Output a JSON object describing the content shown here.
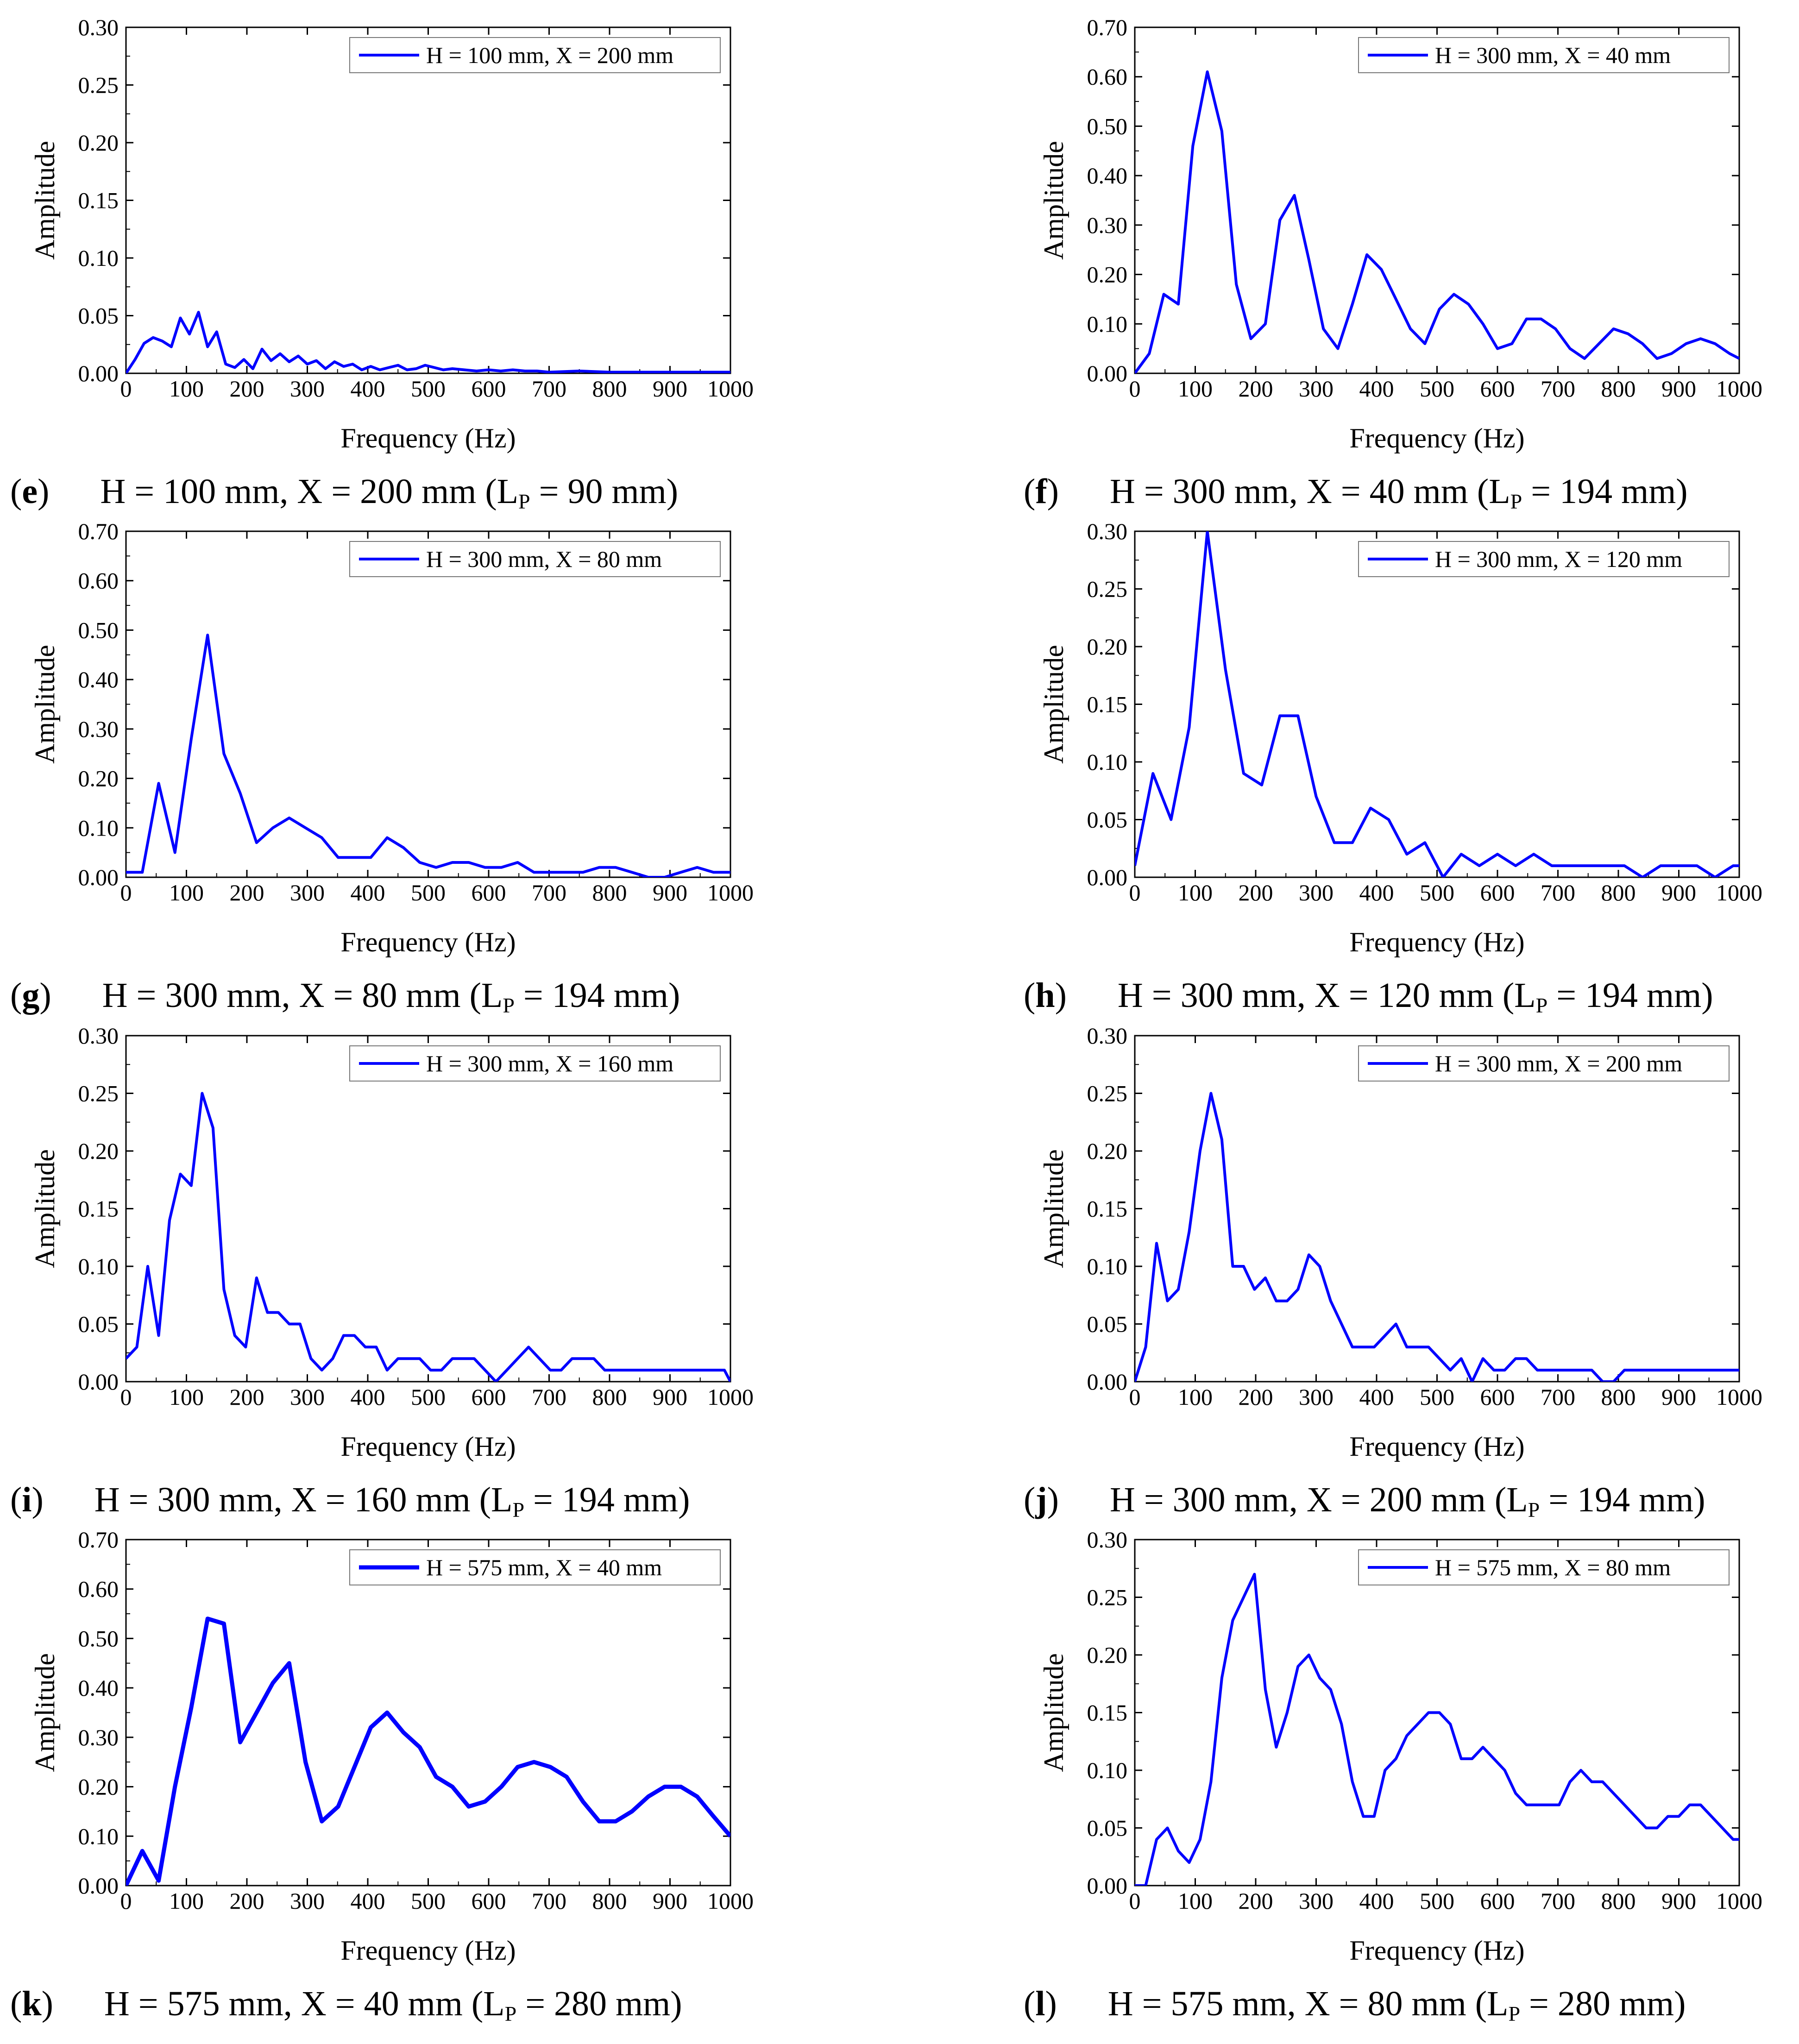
{
  "series_color": "#0000ff",
  "chart_data": [
    {
      "type": "line",
      "panel": "e",
      "caption": {
        "letter": "e",
        "title": "H = 100 mm, X = 200 mm (L",
        "sub": "P",
        "tail": " = 90 mm)"
      },
      "legend": "H = 100 mm, X = 200 mm",
      "xlabel": "Frequency (Hz)",
      "ylabel": "Amplitude",
      "xlim": [
        0,
        1000
      ],
      "ylim": [
        0,
        0.3
      ],
      "xticks": [
        0,
        100,
        200,
        300,
        400,
        500,
        600,
        700,
        800,
        900,
        1000
      ],
      "yticks": [
        0.0,
        0.05,
        0.1,
        0.15,
        0.2,
        0.25,
        0.3
      ],
      "x": [
        0,
        15,
        30,
        45,
        60,
        75,
        90,
        105,
        120,
        135,
        150,
        165,
        180,
        195,
        210,
        225,
        240,
        255,
        270,
        285,
        300,
        315,
        330,
        345,
        360,
        375,
        390,
        405,
        420,
        435,
        450,
        465,
        480,
        495,
        510,
        525,
        540,
        560,
        580,
        600,
        620,
        640,
        660,
        680,
        700,
        750,
        800,
        850,
        900,
        950,
        1000
      ],
      "y": [
        0.0,
        0.012,
        0.026,
        0.031,
        0.028,
        0.023,
        0.048,
        0.034,
        0.053,
        0.023,
        0.036,
        0.008,
        0.005,
        0.012,
        0.004,
        0.021,
        0.011,
        0.017,
        0.01,
        0.015,
        0.008,
        0.011,
        0.004,
        0.01,
        0.006,
        0.008,
        0.003,
        0.006,
        0.003,
        0.005,
        0.007,
        0.003,
        0.004,
        0.007,
        0.005,
        0.003,
        0.004,
        0.003,
        0.002,
        0.003,
        0.002,
        0.003,
        0.002,
        0.002,
        0.001,
        0.002,
        0.001,
        0.001,
        0.001,
        0.001,
        0.001
      ]
    },
    {
      "type": "line",
      "panel": "f",
      "caption": {
        "letter": "f",
        "title": "H = 300 mm, X = 40 mm (L",
        "sub": "P",
        "tail": " = 194 mm)"
      },
      "legend": "H = 300 mm, X = 40 mm",
      "xlabel": "Frequency (Hz)",
      "ylabel": "Amplitude",
      "xlim": [
        0,
        1000
      ],
      "ylim": [
        0,
        0.7
      ],
      "xticks": [
        0,
        100,
        200,
        300,
        400,
        500,
        600,
        700,
        800,
        900,
        1000
      ],
      "yticks": [
        0.0,
        0.1,
        0.2,
        0.3,
        0.4,
        0.5,
        0.6,
        0.7
      ],
      "x": [
        0,
        24,
        48,
        72,
        96,
        120,
        144,
        168,
        192,
        216,
        240,
        264,
        288,
        312,
        336,
        360,
        384,
        408,
        432,
        456,
        480,
        504,
        528,
        552,
        576,
        600,
        624,
        648,
        672,
        696,
        720,
        744,
        768,
        792,
        816,
        840,
        864,
        888,
        912,
        936,
        960,
        984,
        1000
      ],
      "y": [
        0.0,
        0.04,
        0.16,
        0.14,
        0.46,
        0.61,
        0.49,
        0.18,
        0.07,
        0.1,
        0.31,
        0.36,
        0.23,
        0.09,
        0.05,
        0.14,
        0.24,
        0.21,
        0.15,
        0.09,
        0.06,
        0.13,
        0.16,
        0.14,
        0.1,
        0.05,
        0.06,
        0.11,
        0.11,
        0.09,
        0.05,
        0.03,
        0.06,
        0.09,
        0.08,
        0.06,
        0.03,
        0.04,
        0.06,
        0.07,
        0.06,
        0.04,
        0.03
      ]
    },
    {
      "type": "line",
      "panel": "g",
      "caption": {
        "letter": "g",
        "title": "H = 300 mm, X = 80 mm (L",
        "sub": "P",
        "tail": " = 194 mm)"
      },
      "legend": "H = 300 mm, X = 80 mm",
      "xlabel": "Frequency (Hz)",
      "ylabel": "Amplitude",
      "xlim": [
        0,
        1000
      ],
      "ylim": [
        0,
        0.7
      ],
      "xticks": [
        0,
        100,
        200,
        300,
        400,
        500,
        600,
        700,
        800,
        900,
        1000
      ],
      "yticks": [
        0.0,
        0.1,
        0.2,
        0.3,
        0.4,
        0.5,
        0.6,
        0.7
      ],
      "x": [
        0,
        27,
        54,
        81,
        108,
        135,
        162,
        189,
        216,
        243,
        270,
        297,
        324,
        351,
        378,
        405,
        432,
        459,
        486,
        513,
        540,
        567,
        594,
        621,
        648,
        675,
        702,
        729,
        756,
        783,
        810,
        837,
        864,
        891,
        918,
        945,
        972,
        1000
      ],
      "y": [
        0.01,
        0.01,
        0.19,
        0.05,
        0.28,
        0.49,
        0.25,
        0.17,
        0.07,
        0.1,
        0.12,
        0.1,
        0.08,
        0.04,
        0.04,
        0.04,
        0.08,
        0.06,
        0.03,
        0.02,
        0.03,
        0.03,
        0.02,
        0.02,
        0.03,
        0.01,
        0.01,
        0.01,
        0.01,
        0.02,
        0.02,
        0.01,
        0.0,
        0.0,
        0.01,
        0.02,
        0.01,
        0.01
      ]
    },
    {
      "type": "line",
      "panel": "h",
      "caption": {
        "letter": "h",
        "title": "H = 300 mm, X = 120 mm (L",
        "sub": "P",
        "tail": " = 194 mm)"
      },
      "legend": "H = 300 mm, X = 120 mm",
      "xlabel": "Frequency (Hz)",
      "ylabel": "Amplitude",
      "xlim": [
        0,
        1000
      ],
      "ylim": [
        0,
        0.3
      ],
      "xticks": [
        0,
        100,
        200,
        300,
        400,
        500,
        600,
        700,
        800,
        900,
        1000
      ],
      "yticks": [
        0.0,
        0.05,
        0.1,
        0.15,
        0.2,
        0.25,
        0.3
      ],
      "x": [
        0,
        30,
        60,
        90,
        120,
        150,
        180,
        210,
        240,
        270,
        300,
        330,
        360,
        390,
        420,
        450,
        480,
        510,
        540,
        570,
        600,
        630,
        660,
        690,
        720,
        750,
        780,
        810,
        840,
        870,
        900,
        930,
        960,
        990,
        1000
      ],
      "y": [
        0.01,
        0.09,
        0.05,
        0.13,
        0.3,
        0.18,
        0.09,
        0.08,
        0.14,
        0.14,
        0.07,
        0.03,
        0.03,
        0.06,
        0.05,
        0.02,
        0.03,
        0.0,
        0.02,
        0.01,
        0.02,
        0.01,
        0.02,
        0.01,
        0.01,
        0.01,
        0.01,
        0.01,
        0.0,
        0.01,
        0.01,
        0.01,
        0.0,
        0.01,
        0.01
      ]
    },
    {
      "type": "line",
      "panel": "i",
      "caption": {
        "letter": "i",
        "title": "H = 300 mm, X = 160 mm (L",
        "sub": "P",
        "tail": " = 194 mm)"
      },
      "legend": "H = 300 mm, X = 160 mm",
      "xlabel": "Frequency (Hz)",
      "ylabel": "Amplitude",
      "xlim": [
        0,
        1000
      ],
      "ylim": [
        0,
        0.3
      ],
      "xticks": [
        0,
        100,
        200,
        300,
        400,
        500,
        600,
        700,
        800,
        900,
        1000
      ],
      "yticks": [
        0.0,
        0.05,
        0.1,
        0.15,
        0.2,
        0.25,
        0.3
      ],
      "x": [
        0,
        18,
        36,
        54,
        72,
        90,
        108,
        126,
        144,
        162,
        180,
        198,
        216,
        234,
        252,
        270,
        288,
        306,
        324,
        342,
        360,
        378,
        396,
        414,
        432,
        450,
        468,
        486,
        504,
        522,
        540,
        558,
        576,
        594,
        612,
        630,
        648,
        666,
        684,
        702,
        720,
        738,
        756,
        774,
        792,
        810,
        828,
        846,
        864,
        882,
        900,
        918,
        936,
        954,
        972,
        990,
        1000
      ],
      "y": [
        0.02,
        0.03,
        0.1,
        0.04,
        0.14,
        0.18,
        0.17,
        0.25,
        0.22,
        0.08,
        0.04,
        0.03,
        0.09,
        0.06,
        0.06,
        0.05,
        0.05,
        0.02,
        0.01,
        0.02,
        0.04,
        0.04,
        0.03,
        0.03,
        0.01,
        0.02,
        0.02,
        0.02,
        0.01,
        0.01,
        0.02,
        0.02,
        0.02,
        0.01,
        0.0,
        0.01,
        0.02,
        0.03,
        0.02,
        0.01,
        0.01,
        0.02,
        0.02,
        0.02,
        0.01,
        0.01,
        0.01,
        0.01,
        0.01,
        0.01,
        0.01,
        0.01,
        0.01,
        0.01,
        0.01,
        0.01,
        0.0
      ]
    },
    {
      "type": "line",
      "panel": "j",
      "caption": {
        "letter": "j",
        "title": "H = 300 mm, X = 200 mm (L",
        "sub": "P",
        "tail": " = 194 mm)"
      },
      "legend": "H = 300 mm, X = 200 mm",
      "xlabel": "Frequency (Hz)",
      "ylabel": "Amplitude",
      "xlim": [
        0,
        1000
      ],
      "ylim": [
        0,
        0.3
      ],
      "xticks": [
        0,
        100,
        200,
        300,
        400,
        500,
        600,
        700,
        800,
        900,
        1000
      ],
      "yticks": [
        0.0,
        0.05,
        0.1,
        0.15,
        0.2,
        0.25,
        0.3
      ],
      "x": [
        0,
        18,
        36,
        54,
        72,
        90,
        108,
        126,
        144,
        162,
        180,
        198,
        216,
        234,
        252,
        270,
        288,
        306,
        324,
        342,
        360,
        378,
        396,
        414,
        432,
        450,
        468,
        486,
        504,
        522,
        540,
        558,
        576,
        594,
        612,
        630,
        648,
        666,
        684,
        702,
        720,
        738,
        756,
        774,
        792,
        810,
        828,
        846,
        864,
        882,
        900,
        918,
        936,
        954,
        972,
        990,
        1000
      ],
      "y": [
        0.0,
        0.03,
        0.12,
        0.07,
        0.08,
        0.13,
        0.2,
        0.25,
        0.21,
        0.1,
        0.1,
        0.08,
        0.09,
        0.07,
        0.07,
        0.08,
        0.11,
        0.1,
        0.07,
        0.05,
        0.03,
        0.03,
        0.03,
        0.04,
        0.05,
        0.03,
        0.03,
        0.03,
        0.02,
        0.01,
        0.02,
        0.0,
        0.02,
        0.01,
        0.01,
        0.02,
        0.02,
        0.01,
        0.01,
        0.01,
        0.01,
        0.01,
        0.01,
        0.0,
        0.0,
        0.01,
        0.01,
        0.01,
        0.01,
        0.01,
        0.01,
        0.01,
        0.01,
        0.01,
        0.01,
        0.01,
        0.01
      ]
    },
    {
      "type": "line",
      "panel": "k",
      "caption": {
        "letter": "k",
        "title": "H = 575 mm, X = 40 mm (L",
        "sub": "P",
        "tail": " = 280 mm)"
      },
      "legend": "H = 575 mm, X = 40 mm",
      "xlabel": "Frequency (Hz)",
      "ylabel": "Amplitude",
      "xlim": [
        0,
        1000
      ],
      "ylim": [
        0,
        0.7
      ],
      "xticks": [
        0,
        100,
        200,
        300,
        400,
        500,
        600,
        700,
        800,
        900,
        1000
      ],
      "yticks": [
        0.0,
        0.1,
        0.2,
        0.3,
        0.4,
        0.5,
        0.6,
        0.7
      ],
      "x": [
        0,
        27,
        54,
        81,
        108,
        135,
        162,
        189,
        216,
        243,
        270,
        297,
        324,
        351,
        378,
        405,
        432,
        459,
        486,
        513,
        540,
        567,
        594,
        621,
        648,
        675,
        702,
        729,
        756,
        783,
        810,
        837,
        864,
        891,
        918,
        945,
        972,
        1000
      ],
      "y": [
        0.0,
        0.07,
        0.01,
        0.2,
        0.36,
        0.54,
        0.53,
        0.29,
        0.35,
        0.41,
        0.45,
        0.25,
        0.13,
        0.16,
        0.24,
        0.32,
        0.35,
        0.31,
        0.28,
        0.22,
        0.2,
        0.16,
        0.17,
        0.2,
        0.24,
        0.25,
        0.24,
        0.22,
        0.17,
        0.13,
        0.13,
        0.15,
        0.18,
        0.2,
        0.2,
        0.18,
        0.14,
        0.1
      ]
    },
    {
      "type": "line",
      "panel": "l",
      "caption": {
        "letter": "l",
        "title": "H = 575 mm, X = 80 mm (L",
        "sub": "P",
        "tail": " = 280 mm)"
      },
      "legend": "H = 575 mm, X = 80 mm",
      "xlabel": "Frequency (Hz)",
      "ylabel": "Amplitude",
      "xlim": [
        0,
        1000
      ],
      "ylim": [
        0,
        0.3
      ],
      "xticks": [
        0,
        100,
        200,
        300,
        400,
        500,
        600,
        700,
        800,
        900,
        1000
      ],
      "yticks": [
        0.0,
        0.05,
        0.1,
        0.15,
        0.2,
        0.25,
        0.3
      ],
      "x": [
        0,
        18,
        36,
        54,
        72,
        90,
        108,
        126,
        144,
        162,
        180,
        198,
        216,
        234,
        252,
        270,
        288,
        306,
        324,
        342,
        360,
        378,
        396,
        414,
        432,
        450,
        468,
        486,
        504,
        522,
        540,
        558,
        576,
        594,
        612,
        630,
        648,
        666,
        684,
        702,
        720,
        738,
        756,
        774,
        792,
        810,
        828,
        846,
        864,
        882,
        900,
        918,
        936,
        954,
        972,
        990,
        1000
      ],
      "y": [
        0.0,
        0.0,
        0.04,
        0.05,
        0.03,
        0.02,
        0.04,
        0.09,
        0.18,
        0.23,
        0.25,
        0.27,
        0.17,
        0.12,
        0.15,
        0.19,
        0.2,
        0.18,
        0.17,
        0.14,
        0.09,
        0.06,
        0.06,
        0.1,
        0.11,
        0.13,
        0.14,
        0.15,
        0.15,
        0.14,
        0.11,
        0.11,
        0.12,
        0.11,
        0.1,
        0.08,
        0.07,
        0.07,
        0.07,
        0.07,
        0.09,
        0.1,
        0.09,
        0.09,
        0.08,
        0.07,
        0.06,
        0.05,
        0.05,
        0.06,
        0.06,
        0.07,
        0.07,
        0.06,
        0.05,
        0.04,
        0.04
      ]
    }
  ]
}
